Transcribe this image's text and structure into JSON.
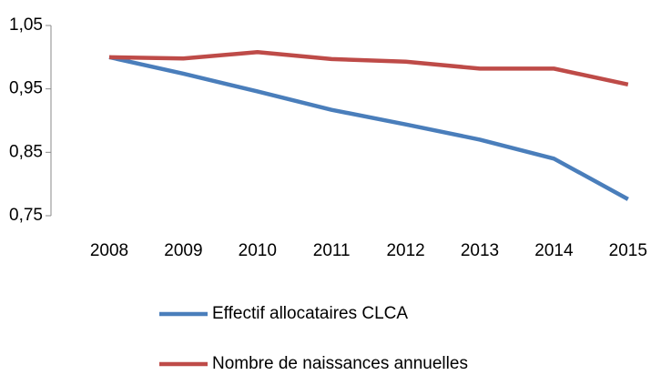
{
  "chart_data": {
    "type": "line",
    "categories": [
      "2008",
      "2009",
      "2010",
      "2011",
      "2012",
      "2013",
      "2014",
      "2015"
    ],
    "series": [
      {
        "name": "Effectif allocataires CLCA",
        "color": "#4a7ebb",
        "values": [
          1.0,
          0.974,
          0.946,
          0.917,
          0.894,
          0.87,
          0.84,
          0.776
        ]
      },
      {
        "name": "Nombre de naissances annuelles",
        "color": "#be4b48",
        "values": [
          1.0,
          0.998,
          1.008,
          0.997,
          0.993,
          0.982,
          0.982,
          0.957
        ]
      }
    ],
    "ylim": [
      0.75,
      1.05
    ],
    "yticks": [
      {
        "value": 0.75,
        "label": "0,75"
      },
      {
        "value": 0.85,
        "label": "0,85"
      },
      {
        "value": 0.95,
        "label": "0,95"
      },
      {
        "value": 1.05,
        "label": "1,05"
      }
    ],
    "legend": "bottom"
  }
}
